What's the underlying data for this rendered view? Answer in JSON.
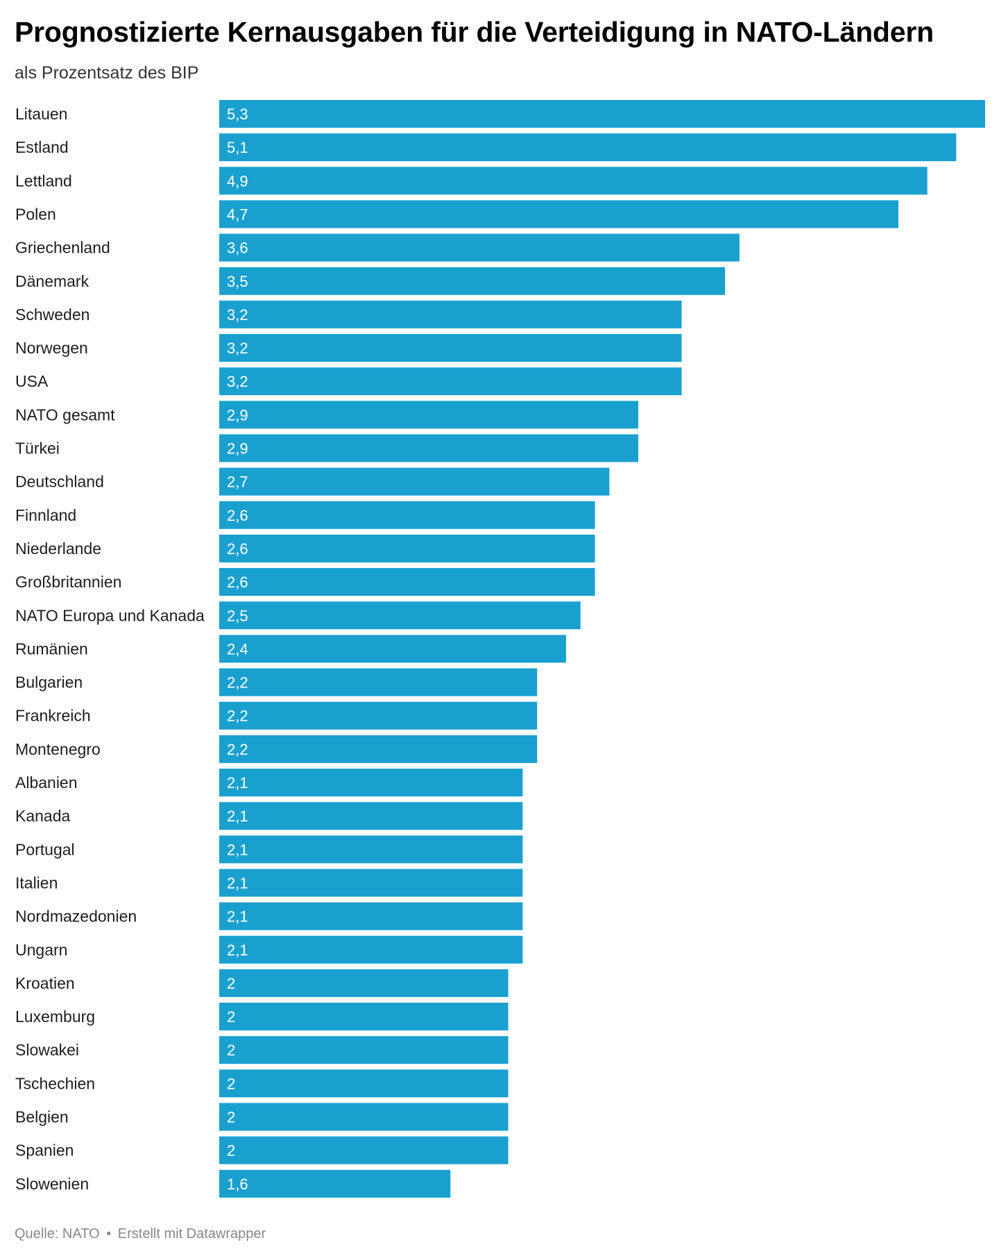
{
  "title": "Prognostizierte Kernausgaben für die Verteidigung in NATO-Ländern",
  "subtitle": "als Prozentsatz des BIP",
  "footer": {
    "source": "Quelle: NATO",
    "separator": "•",
    "credit": "Erstellt mit Datawrapper"
  },
  "colors": {
    "bar": "#1aa0cf",
    "bar_label": "#ffffff",
    "row_label": "#1d1d1d"
  },
  "chart_data": {
    "type": "bar",
    "orientation": "horizontal",
    "title": "Prognostizierte Kernausgaben für die Verteidigung in NATO-Ländern",
    "subtitle": "als Prozentsatz des BIP",
    "categories": [
      "Litauen",
      "Estland",
      "Lettland",
      "Polen",
      "Griechenland",
      "Dänemark",
      "Schweden",
      "Norwegen",
      "USA",
      "NATO gesamt",
      "Türkei",
      "Deutschland",
      "Finnland",
      "Niederlande",
      "Großbritannien",
      "NATO Europa und Kanada",
      "Rumänien",
      "Bulgarien",
      "Frankreich",
      "Montenegro",
      "Albanien",
      "Kanada",
      "Portugal",
      "Italien",
      "Nordmazedonien",
      "Ungarn",
      "Kroatien",
      "Luxemburg",
      "Slowakei",
      "Tschechien",
      "Belgien",
      "Spanien",
      "Slowenien"
    ],
    "values": [
      5.3,
      5.1,
      4.9,
      4.7,
      3.6,
      3.5,
      3.2,
      3.2,
      3.2,
      2.9,
      2.9,
      2.7,
      2.6,
      2.6,
      2.6,
      2.5,
      2.4,
      2.2,
      2.2,
      2.2,
      2.1,
      2.1,
      2.1,
      2.1,
      2.1,
      2.1,
      2.0,
      2.0,
      2.0,
      2.0,
      2.0,
      2.0,
      1.6
    ],
    "value_labels": [
      "5,3",
      "5,1",
      "4,9",
      "4,7",
      "3,6",
      "3,5",
      "3,2",
      "3,2",
      "3,2",
      "2,9",
      "2,9",
      "2,7",
      "2,6",
      "2,6",
      "2,6",
      "2,5",
      "2,4",
      "2,2",
      "2,2",
      "2,2",
      "2,1",
      "2,1",
      "2,1",
      "2,1",
      "2,1",
      "2,1",
      "2",
      "2",
      "2",
      "2",
      "2",
      "2",
      "1,6"
    ],
    "xlim": [
      0,
      5.3
    ],
    "grid": false,
    "legend": "none",
    "data_labels": "inside-left"
  }
}
